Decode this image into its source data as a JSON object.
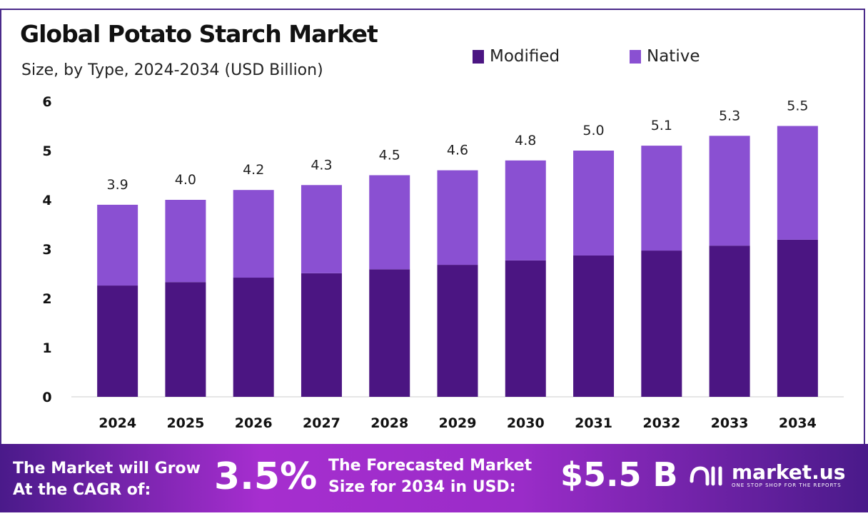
{
  "chart_data": {
    "type": "bar",
    "stacked": true,
    "title": "Global Potato Starch Market",
    "subtitle": "Size, by Type, 2024-2034 (USD Billion)",
    "categories": [
      "2024",
      "2025",
      "2026",
      "2027",
      "2028",
      "2029",
      "2030",
      "2031",
      "2032",
      "2033",
      "2034"
    ],
    "series": [
      {
        "name": "Modified",
        "color": "#4b1582",
        "values": [
          2.26,
          2.33,
          2.42,
          2.51,
          2.59,
          2.68,
          2.77,
          2.87,
          2.97,
          3.07,
          3.19
        ]
      },
      {
        "name": "Native",
        "color": "#8a50d2",
        "values": [
          1.64,
          1.67,
          1.78,
          1.79,
          1.91,
          1.92,
          2.03,
          2.13,
          2.13,
          2.23,
          2.31
        ]
      }
    ],
    "totals": [
      "3.9",
      "4.0",
      "4.2",
      "4.3",
      "4.5",
      "4.6",
      "4.8",
      "5.0",
      "5.1",
      "5.3",
      "5.5"
    ],
    "yticks": [
      "0",
      "1",
      "2",
      "3",
      "4",
      "5",
      "6"
    ],
    "ylim": [
      0,
      6
    ],
    "grid": false,
    "legend_position": "top-center"
  },
  "banner": {
    "cagr_label_1": "The Market will Grow",
    "cagr_label_2": "At the CAGR of:",
    "cagr_value": "3.5%",
    "forecast_label_1": "The Forecasted Market",
    "forecast_label_2": "Size for 2034 in USD:",
    "forecast_value": "$5.5 B",
    "logo_name": "market.us",
    "logo_tagline": "ONE STOP SHOP FOR THE REPORTS"
  }
}
